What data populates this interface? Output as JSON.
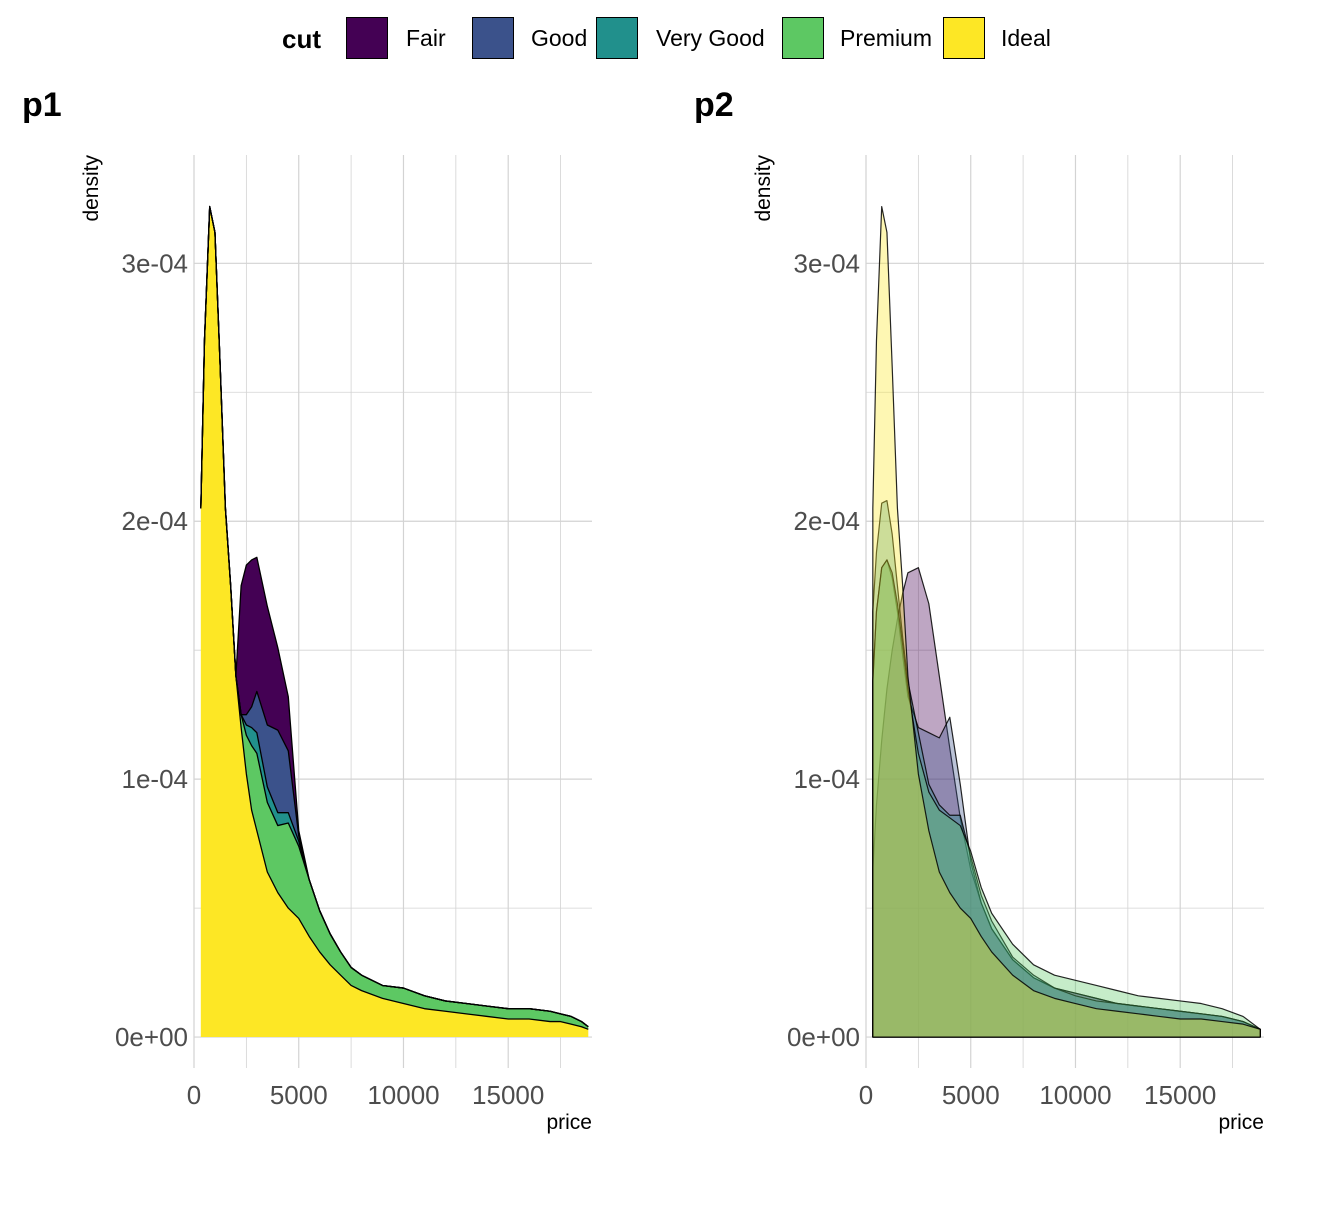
{
  "legend": {
    "title": "cut",
    "items": [
      {
        "label": "Fair",
        "color": "#440154"
      },
      {
        "label": "Good",
        "color": "#3B528B"
      },
      {
        "label": "Very Good",
        "color": "#21908C"
      },
      {
        "label": "Premium",
        "color": "#5DC863"
      },
      {
        "label": "Ideal",
        "color": "#FDE725"
      }
    ]
  },
  "chart_data": [
    {
      "type": "area",
      "title": "p1",
      "position": "stack",
      "xlabel": "price",
      "ylabel": "density",
      "xlim": [
        0,
        19000
      ],
      "ylim": [
        -1.2e-05,
        0.000342
      ],
      "x_ticks": [
        0,
        5000,
        10000,
        15000
      ],
      "x_tick_labels": [
        "0",
        "5000",
        "10000",
        "15000"
      ],
      "y_ticks": [
        0,
        0.0001,
        0.0002,
        0.0003
      ],
      "y_tick_labels": [
        "0e+00",
        "1e-04",
        "2e-04",
        "3e-04"
      ],
      "grid": true,
      "legend_position": "top",
      "fill_alpha": 1,
      "x": [
        326,
        500,
        750,
        1000,
        1250,
        1500,
        1750,
        2000,
        2250,
        2500,
        2750,
        3000,
        3500,
        4000,
        4500,
        5000,
        5500,
        6000,
        6500,
        7000,
        7500,
        8000,
        9000,
        10000,
        11000,
        12000,
        13000,
        14000,
        15000,
        16000,
        17000,
        17500,
        18000,
        18500,
        18823
      ],
      "series": [
        {
          "name": "Ideal",
          "color": "#FDE725",
          "values": [
            0.000205,
            0.00027,
            0.000322,
            0.000312,
            0.00026,
            0.000205,
            0.000175,
            0.00014,
            0.00012,
            0.000102,
            8.8e-05,
            8e-05,
            6.4e-05,
            5.6e-05,
            5e-05,
            4.6e-05,
            3.9e-05,
            3.3e-05,
            2.8e-05,
            2.4e-05,
            2e-05,
            1.8e-05,
            1.5e-05,
            1.3e-05,
            1.1e-05,
            1e-05,
            9e-06,
            8e-06,
            7e-06,
            7e-06,
            6e-06,
            6e-06,
            5e-06,
            4e-06,
            3e-06
          ]
        },
        {
          "name": "Premium",
          "color": "#5DC863",
          "values": [
            0,
            0,
            0,
            0,
            0,
            0,
            0,
            0,
            5e-06,
            1.5e-05,
            2.5e-05,
            3e-05,
            2.7e-05,
            2.6e-05,
            3.3e-05,
            2.8e-05,
            2.2e-05,
            1.6e-05,
            1.2e-05,
            9e-06,
            7e-06,
            6e-06,
            5e-06,
            6e-06,
            5e-06,
            4e-06,
            4e-06,
            4e-06,
            4e-06,
            4e-06,
            4e-06,
            3e-06,
            3e-06,
            2e-06,
            1e-06
          ]
        },
        {
          "name": "Very Good",
          "color": "#21908C",
          "values": [
            0,
            0,
            0,
            0,
            0,
            0,
            0,
            0,
            0,
            4e-06,
            7e-06,
            8e-06,
            6e-06,
            5e-06,
            4e-06,
            2e-06,
            0,
            0,
            0,
            0,
            0,
            0,
            0,
            0,
            0,
            0,
            0,
            0,
            0,
            0,
            0,
            0,
            0,
            0,
            0
          ]
        },
        {
          "name": "Good",
          "color": "#3B528B",
          "values": [
            0,
            0,
            0,
            0,
            0,
            0,
            0,
            0,
            0,
            4e-06,
            8e-06,
            1.6e-05,
            2.4e-05,
            3.2e-05,
            2.4e-05,
            2e-06,
            0,
            0,
            0,
            0,
            0,
            0,
            0,
            0,
            0,
            0,
            0,
            0,
            0,
            0,
            0,
            0,
            0,
            0,
            0
          ]
        },
        {
          "name": "Fair",
          "color": "#440154",
          "values": [
            0,
            0,
            0,
            0,
            0,
            0,
            0,
            0,
            5e-05,
            5.8e-05,
            5.7e-05,
            5.2e-05,
            4.6e-05,
            3.2e-05,
            2.1e-05,
            2e-06,
            0,
            0,
            0,
            0,
            0,
            0,
            0,
            0,
            0,
            0,
            0,
            0,
            0,
            0,
            0,
            0,
            0,
            0,
            0
          ]
        }
      ]
    },
    {
      "type": "area",
      "title": "p2",
      "position": "identity",
      "xlabel": "price",
      "ylabel": "density",
      "xlim": [
        0,
        19000
      ],
      "ylim": [
        -1.2e-05,
        0.000342
      ],
      "x_ticks": [
        0,
        5000,
        10000,
        15000
      ],
      "x_tick_labels": [
        "0",
        "5000",
        "10000",
        "15000"
      ],
      "y_ticks": [
        0,
        0.0001,
        0.0002,
        0.0003
      ],
      "y_tick_labels": [
        "0e+00",
        "1e-04",
        "2e-04",
        "3e-04"
      ],
      "grid": true,
      "legend_position": "top",
      "fill_alpha": 0.35,
      "x": [
        326,
        500,
        750,
        1000,
        1250,
        1500,
        1750,
        2000,
        2500,
        3000,
        3500,
        4000,
        4500,
        5000,
        5500,
        6000,
        7000,
        8000,
        9000,
        10000,
        11000,
        12000,
        13000,
        14000,
        15000,
        16000,
        17000,
        18000,
        18823
      ],
      "series": [
        {
          "name": "Fair",
          "color": "#440154",
          "values": [
            6.5e-05,
            9e-05,
            0.000115,
            0.000135,
            0.00015,
            0.000162,
            0.000172,
            0.00018,
            0.000182,
            0.000168,
            0.00014,
            0.000112,
            8.5e-05,
            6.5e-05,
            5.2e-05,
            4.2e-05,
            3e-05,
            2.3e-05,
            1.9e-05,
            1.7e-05,
            1.5e-05,
            1.3e-05,
            1.2e-05,
            1.1e-05,
            1e-05,
            9e-06,
            8e-06,
            6e-06,
            3e-06
          ]
        },
        {
          "name": "Good",
          "color": "#3B528B",
          "values": [
            0.000138,
            0.000165,
            0.000182,
            0.000185,
            0.000178,
            0.000165,
            0.000148,
            0.000132,
            0.00012,
            0.000118,
            0.000116,
            0.000124,
            9.8e-05,
            6.8e-05,
            5.2e-05,
            4.2e-05,
            3e-05,
            2.3e-05,
            1.9e-05,
            1.7e-05,
            1.5e-05,
            1.3e-05,
            1.2e-05,
            1.1e-05,
            1e-05,
            9e-06,
            8e-06,
            6e-06,
            3e-06
          ]
        },
        {
          "name": "Very Good",
          "color": "#21908C",
          "values": [
            0.000165,
            0.000188,
            0.000207,
            0.000208,
            0.000195,
            0.000175,
            0.000155,
            0.000138,
            0.000118,
            9.8e-05,
            9e-05,
            8.6e-05,
            8.6e-05,
            7e-05,
            5.5e-05,
            4.5e-05,
            3.1e-05,
            2.4e-05,
            1.9e-05,
            1.6e-05,
            1.4e-05,
            1.3e-05,
            1.2e-05,
            1.1e-05,
            1e-05,
            9e-06,
            8e-06,
            6e-06,
            3e-06
          ]
        },
        {
          "name": "Premium",
          "color": "#5DC863",
          "values": [
            0.000138,
            0.000165,
            0.000182,
            0.000185,
            0.00018,
            0.000168,
            0.000152,
            0.000135,
            0.00011,
            9.5e-05,
            8.8e-05,
            8.5e-05,
            8.2e-05,
            7.2e-05,
            5.8e-05,
            4.8e-05,
            3.6e-05,
            2.8e-05,
            2.4e-05,
            2.2e-05,
            2e-05,
            1.8e-05,
            1.6e-05,
            1.5e-05,
            1.4e-05,
            1.3e-05,
            1.1e-05,
            8e-06,
            3e-06
          ]
        },
        {
          "name": "Ideal",
          "color": "#FDE725",
          "values": [
            0.000205,
            0.00027,
            0.000322,
            0.000312,
            0.00026,
            0.000205,
            0.000175,
            0.00014,
            0.000102,
            8e-05,
            6.4e-05,
            5.6e-05,
            5e-05,
            4.6e-05,
            3.9e-05,
            3.3e-05,
            2.4e-05,
            1.8e-05,
            1.5e-05,
            1.3e-05,
            1.1e-05,
            1e-05,
            9e-06,
            8e-06,
            7e-06,
            7e-06,
            6e-06,
            5e-06,
            3e-06
          ]
        }
      ]
    }
  ]
}
